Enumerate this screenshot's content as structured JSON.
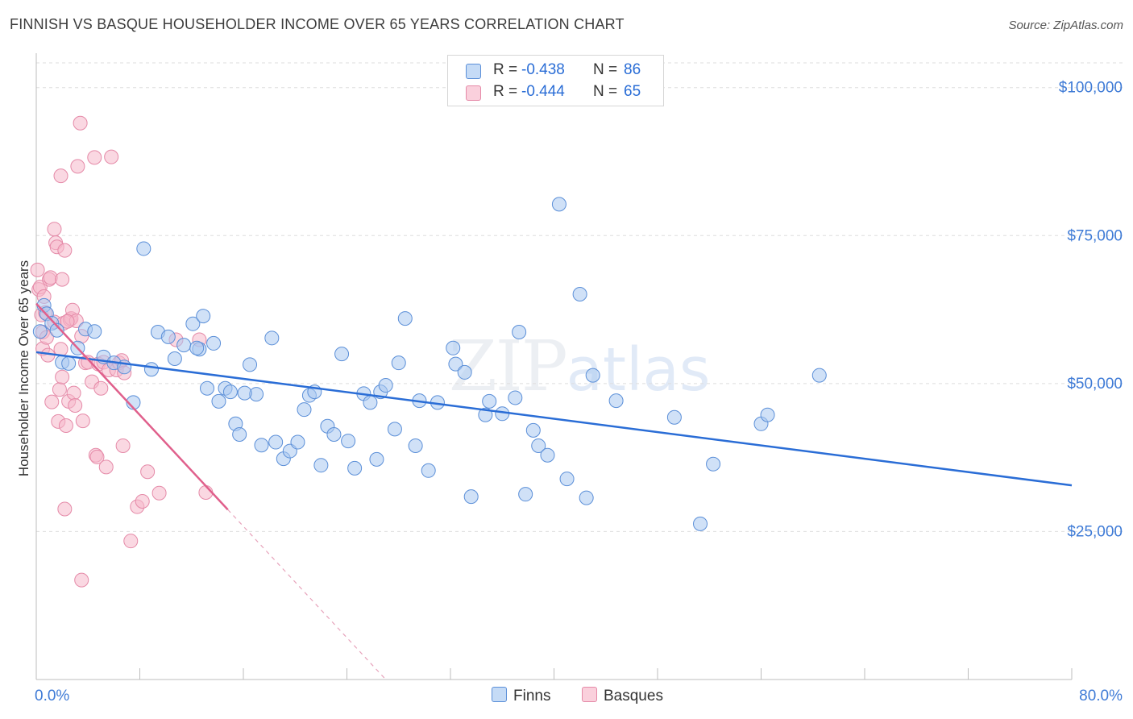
{
  "title": "FINNISH VS BASQUE HOUSEHOLDER INCOME OVER 65 YEARS CORRELATION CHART",
  "source": "Source: ZipAtlas.com",
  "watermark": {
    "zip": "ZIP",
    "atlas": "atlas"
  },
  "legend": {
    "rows": [
      {
        "r_label": "R =",
        "r_value": "-0.438",
        "n_label": "N =",
        "n_value": "86",
        "color": "#a9c8f0"
      },
      {
        "r_label": "R =",
        "r_value": "-0.444",
        "n_label": "N =",
        "n_value": "65",
        "color": "#f5b8ca"
      }
    ]
  },
  "bottom_legend": {
    "finns": "Finns",
    "basques": "Basques"
  },
  "colors": {
    "finns_fill": "#a9c8f0",
    "finns_stroke": "#5b8fd8",
    "finns_line": "#2a6dd6",
    "basques_fill": "#f5b8ca",
    "basques_stroke": "#e58aa8",
    "basques_line": "#e0608c",
    "axis_label": "#3f7bd6"
  },
  "chart_data": {
    "type": "scatter",
    "title": "FINNISH VS BASQUE HOUSEHOLDER INCOME OVER 65 YEARS CORRELATION CHART",
    "xlabel": "",
    "ylabel": "Householder Income Over 65 years",
    "xlim": [
      0,
      80
    ],
    "ylim": [
      0,
      105000
    ],
    "x_tick_labels": [
      "0.0%",
      "80.0%"
    ],
    "y_ticks": [
      25000,
      50000,
      75000,
      100000
    ],
    "y_tick_labels": [
      "$25,000",
      "$50,000",
      "$75,000",
      "$100,000"
    ],
    "series": [
      {
        "name": "Finns",
        "r": -0.438,
        "n": 86,
        "trend": {
          "x": [
            0,
            80
          ],
          "y": [
            55300,
            32800
          ]
        },
        "points": [
          [
            0.3,
            58800
          ],
          [
            0.6,
            63200
          ],
          [
            0.8,
            61800
          ],
          [
            1.2,
            60200
          ],
          [
            1.6,
            59000
          ],
          [
            2.0,
            53600
          ],
          [
            2.5,
            53400
          ],
          [
            3.2,
            56000
          ],
          [
            3.8,
            59200
          ],
          [
            4.5,
            58800
          ],
          [
            5.2,
            54500
          ],
          [
            6.0,
            53500
          ],
          [
            6.8,
            52800
          ],
          [
            7.5,
            46800
          ],
          [
            8.3,
            72800
          ],
          [
            8.9,
            52400
          ],
          [
            9.4,
            58700
          ],
          [
            10.2,
            57900
          ],
          [
            10.7,
            54200
          ],
          [
            11.4,
            56500
          ],
          [
            12.1,
            60100
          ],
          [
            12.6,
            55800
          ],
          [
            12.9,
            61400
          ],
          [
            13.2,
            49200
          ],
          [
            13.7,
            56800
          ],
          [
            14.1,
            47000
          ],
          [
            14.6,
            49200
          ],
          [
            15.0,
            48600
          ],
          [
            15.4,
            43200
          ],
          [
            15.7,
            41400
          ],
          [
            16.5,
            53200
          ],
          [
            17.0,
            48200
          ],
          [
            17.4,
            39600
          ],
          [
            18.2,
            57700
          ],
          [
            18.5,
            40100
          ],
          [
            19.1,
            37300
          ],
          [
            19.6,
            38600
          ],
          [
            20.2,
            40100
          ],
          [
            20.7,
            45600
          ],
          [
            21.1,
            48000
          ],
          [
            21.5,
            48600
          ],
          [
            22.0,
            36200
          ],
          [
            22.5,
            42800
          ],
          [
            23.0,
            41400
          ],
          [
            23.6,
            55000
          ],
          [
            24.1,
            40300
          ],
          [
            24.6,
            35700
          ],
          [
            25.3,
            48300
          ],
          [
            25.8,
            46800
          ],
          [
            26.3,
            37200
          ],
          [
            26.6,
            48600
          ],
          [
            27.0,
            49700
          ],
          [
            27.7,
            42300
          ],
          [
            28.0,
            53500
          ],
          [
            28.5,
            61000
          ],
          [
            29.3,
            39500
          ],
          [
            29.6,
            47100
          ],
          [
            30.3,
            35300
          ],
          [
            31.0,
            46800
          ],
          [
            32.2,
            56000
          ],
          [
            32.4,
            53300
          ],
          [
            33.1,
            51900
          ],
          [
            33.6,
            30900
          ],
          [
            34.7,
            44700
          ],
          [
            35.0,
            47000
          ],
          [
            36.0,
            44900
          ],
          [
            37.0,
            47600
          ],
          [
            37.3,
            58700
          ],
          [
            37.8,
            31300
          ],
          [
            38.4,
            42100
          ],
          [
            38.8,
            39500
          ],
          [
            39.5,
            37900
          ],
          [
            40.4,
            80300
          ],
          [
            41.0,
            33900
          ],
          [
            42.0,
            65100
          ],
          [
            42.5,
            30700
          ],
          [
            43.0,
            51400
          ],
          [
            44.8,
            47100
          ],
          [
            49.3,
            44300
          ],
          [
            51.3,
            26300
          ],
          [
            52.3,
            36400
          ],
          [
            56.0,
            43200
          ],
          [
            56.5,
            44700
          ],
          [
            60.5,
            51400
          ],
          [
            12.4,
            56000
          ],
          [
            16.1,
            48400
          ]
        ]
      },
      {
        "name": "Basques",
        "r": -0.444,
        "n": 65,
        "trend": {
          "x": [
            0,
            14.8
          ],
          "y": [
            63500,
            28700
          ]
        },
        "trend_dashed": {
          "x": [
            14.8,
            27
          ],
          "y": [
            28700,
            0
          ]
        },
        "points": [
          [
            0.1,
            69200
          ],
          [
            0.2,
            65900
          ],
          [
            0.3,
            66300
          ],
          [
            0.4,
            61600
          ],
          [
            0.5,
            58700
          ],
          [
            0.5,
            55900
          ],
          [
            0.6,
            64700
          ],
          [
            0.7,
            62000
          ],
          [
            0.8,
            57800
          ],
          [
            0.9,
            54800
          ],
          [
            1.0,
            67600
          ],
          [
            1.1,
            67900
          ],
          [
            1.2,
            46900
          ],
          [
            1.4,
            76100
          ],
          [
            1.4,
            60400
          ],
          [
            1.5,
            73800
          ],
          [
            1.6,
            73100
          ],
          [
            1.7,
            43600
          ],
          [
            1.8,
            49000
          ],
          [
            1.9,
            55800
          ],
          [
            1.9,
            85100
          ],
          [
            2.0,
            67600
          ],
          [
            2.0,
            51100
          ],
          [
            2.1,
            60200
          ],
          [
            2.2,
            72500
          ],
          [
            2.2,
            28800
          ],
          [
            2.3,
            42900
          ],
          [
            2.5,
            47000
          ],
          [
            2.6,
            60800
          ],
          [
            2.7,
            61000
          ],
          [
            2.8,
            62400
          ],
          [
            2.9,
            48400
          ],
          [
            3.0,
            46300
          ],
          [
            3.1,
            60600
          ],
          [
            3.2,
            86700
          ],
          [
            3.4,
            94000
          ],
          [
            3.5,
            16800
          ],
          [
            3.6,
            43700
          ],
          [
            3.8,
            53500
          ],
          [
            4.0,
            53600
          ],
          [
            4.3,
            50300
          ],
          [
            4.5,
            88200
          ],
          [
            4.6,
            37900
          ],
          [
            4.7,
            37600
          ],
          [
            4.8,
            53300
          ],
          [
            5.0,
            49200
          ],
          [
            5.2,
            53600
          ],
          [
            5.4,
            35900
          ],
          [
            5.6,
            52300
          ],
          [
            5.8,
            88300
          ],
          [
            6.2,
            52300
          ],
          [
            6.4,
            53500
          ],
          [
            6.6,
            53900
          ],
          [
            6.7,
            39500
          ],
          [
            7.3,
            23400
          ],
          [
            7.8,
            29200
          ],
          [
            8.2,
            30100
          ],
          [
            8.6,
            35100
          ],
          [
            9.5,
            31500
          ],
          [
            10.8,
            57400
          ],
          [
            12.6,
            57400
          ],
          [
            13.1,
            31600
          ],
          [
            6.8,
            51800
          ],
          [
            3.5,
            58000
          ],
          [
            2.4,
            60500
          ]
        ]
      }
    ]
  }
}
